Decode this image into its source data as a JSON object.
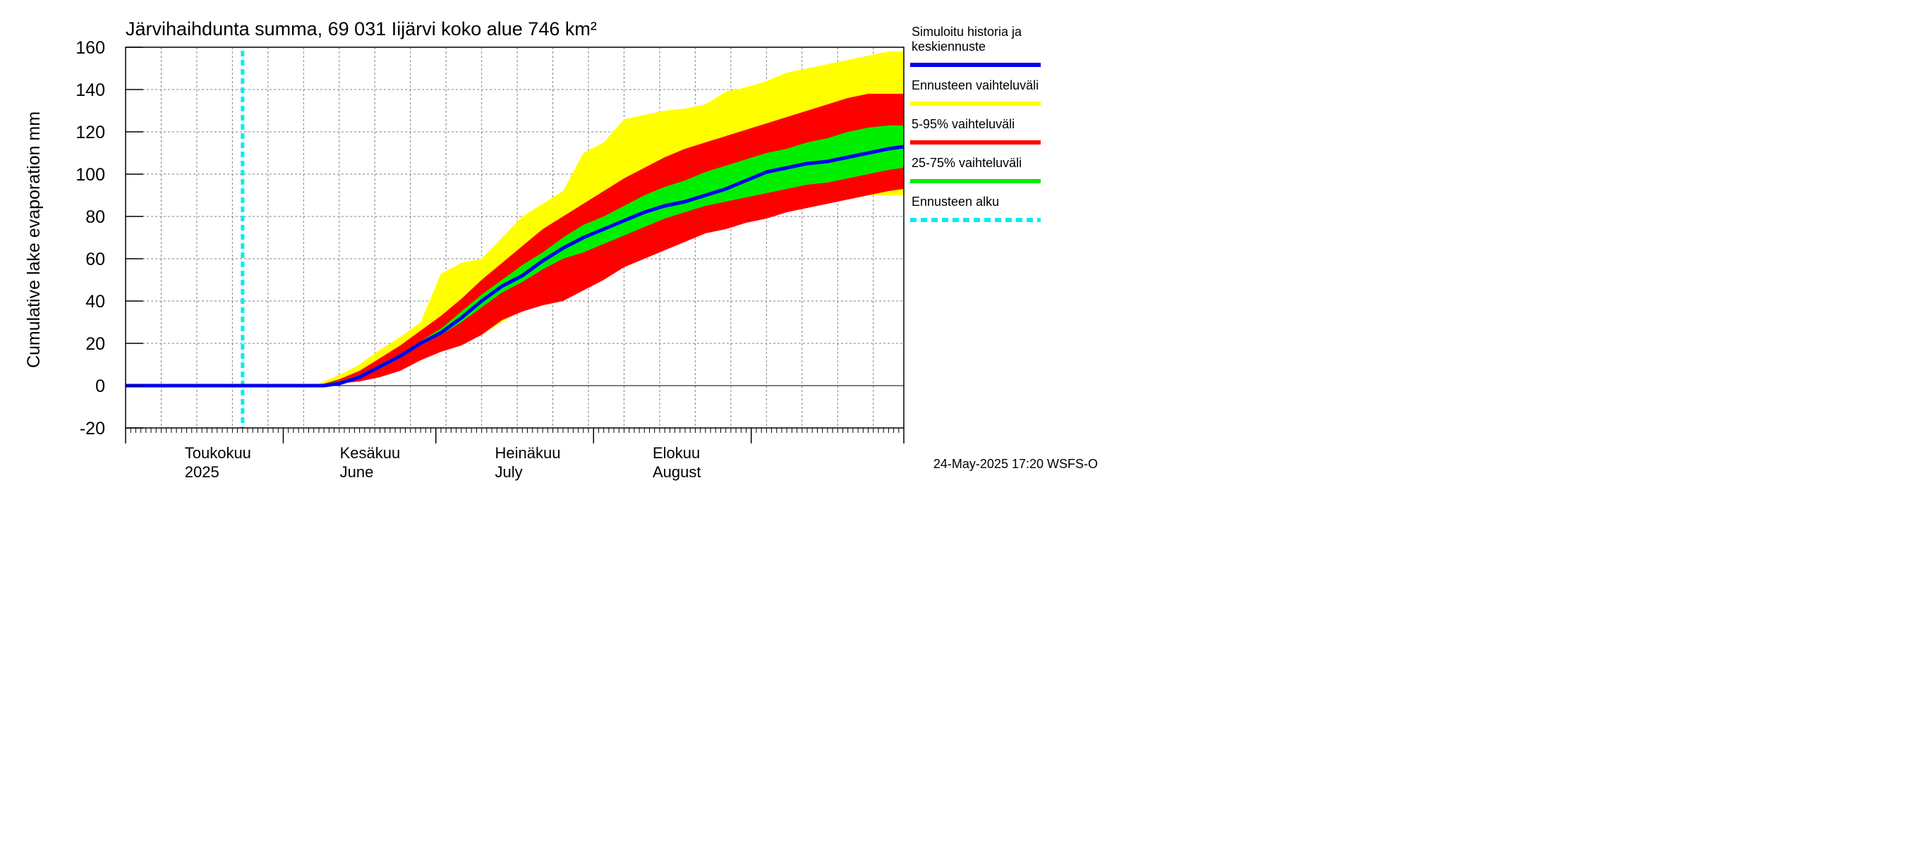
{
  "chart_data": {
    "type": "area",
    "title": "Järvihaihdunta summa, 69 031 Iijärvi koko alue 746 km²",
    "ylabel": "Cumulative lake evaporation   mm",
    "ylim": [
      -20,
      160
    ],
    "yticks": [
      -20,
      0,
      20,
      40,
      60,
      80,
      100,
      120,
      140,
      160
    ],
    "xlim": [
      0,
      153
    ],
    "month_ticks": [
      0,
      31,
      61,
      92,
      123,
      153
    ],
    "month_labels": [
      {
        "day": 15.5,
        "fi": "Toukokuu",
        "en": "2025"
      },
      {
        "day": 46,
        "fi": "Kesäkuu",
        "en": "June"
      },
      {
        "day": 76.5,
        "fi": "Heinäkuu",
        "en": "July"
      },
      {
        "day": 107.5,
        "fi": "Elokuu",
        "en": "August"
      }
    ],
    "grid": true,
    "forecast_start": 23,
    "x": [
      0,
      23,
      35,
      38,
      39,
      42,
      46,
      50,
      54,
      58,
      62,
      66,
      70,
      74,
      78,
      82,
      86,
      90,
      94,
      98,
      102,
      106,
      110,
      114,
      118,
      122,
      126,
      130,
      134,
      138,
      142,
      146,
      150,
      153
    ],
    "yellow_upper": [
      0,
      0,
      0,
      1,
      2,
      5,
      10,
      17,
      23,
      30,
      53,
      58,
      60,
      70,
      80,
      86,
      92,
      110,
      115,
      126,
      128,
      130,
      131,
      133,
      139,
      141,
      144,
      148,
      150,
      152,
      154,
      156,
      158,
      158
    ],
    "yellow_lower": [
      0,
      0,
      0,
      0,
      0,
      1,
      3,
      5,
      8,
      13,
      17,
      20,
      24,
      30,
      36,
      38,
      40,
      46,
      52,
      58,
      62,
      66,
      70,
      74,
      79,
      82,
      85,
      86,
      87,
      88,
      89,
      90,
      90,
      90
    ],
    "red_upper": [
      0,
      0,
      0,
      0,
      1,
      3,
      7,
      13,
      19,
      26,
      33,
      41,
      50,
      58,
      66,
      74,
      80,
      86,
      92,
      98,
      103,
      108,
      112,
      115,
      118,
      121,
      124,
      127,
      130,
      133,
      136,
      138,
      138,
      138
    ],
    "red_lower": [
      0,
      0,
      0,
      0,
      0,
      1,
      2,
      4,
      7,
      12,
      16,
      19,
      24,
      31,
      35,
      38,
      40,
      45,
      50,
      56,
      60,
      64,
      68,
      72,
      74,
      77,
      79,
      82,
      84,
      86,
      88,
      90,
      92,
      93
    ],
    "green_upper": [
      0,
      0,
      0,
      0,
      1,
      2,
      5,
      10,
      15,
      21,
      27,
      35,
      43,
      50,
      57,
      63,
      70,
      76,
      80,
      85,
      90,
      94,
      97,
      101,
      104,
      107,
      110,
      112,
      115,
      117,
      120,
      122,
      123,
      123
    ],
    "green_lower": [
      0,
      0,
      0,
      0,
      0,
      1,
      4,
      8,
      13,
      19,
      24,
      30,
      37,
      44,
      49,
      55,
      60,
      63,
      67,
      71,
      75,
      79,
      82,
      85,
      87,
      89,
      91,
      93,
      95,
      96,
      98,
      100,
      102,
      103
    ],
    "mean": [
      0,
      0,
      0,
      0,
      0,
      1,
      4,
      9,
      14,
      20,
      25,
      32,
      40,
      47,
      52,
      59,
      65,
      70,
      74,
      78,
      82,
      85,
      87,
      90,
      93,
      97,
      101,
      103,
      105,
      106,
      108,
      110,
      112,
      113
    ],
    "colors": {
      "yellow": "#ffff00",
      "red": "#ff0000",
      "green": "#00ee00",
      "mean": "#0000ee",
      "forecast_start": "#00eeee",
      "grid": "#808080"
    }
  },
  "legend": [
    {
      "label": "Simuloitu historia ja keskiennuste",
      "lines": [
        "Simuloitu historia ja",
        "keskiennuste"
      ],
      "color": "#0000ee",
      "dashed": false
    },
    {
      "label": "Ennusteen vaihteluväli",
      "lines": [
        "Ennusteen vaihteluväli"
      ],
      "color": "#ffff00",
      "dashed": false
    },
    {
      "label": "5-95% vaihteluväli",
      "lines": [
        "5-95% vaihteluväli"
      ],
      "color": "#ff0000",
      "dashed": false
    },
    {
      "label": "25-75% vaihteluväli",
      "lines": [
        "25-75% vaihteluväli"
      ],
      "color": "#00ee00",
      "dashed": false
    },
    {
      "label": "Ennusteen alku",
      "lines": [
        "Ennusteen alku"
      ],
      "color": "#00eeee",
      "dashed": true
    }
  ],
  "footer": "24-May-2025 17:20 WSFS-O"
}
